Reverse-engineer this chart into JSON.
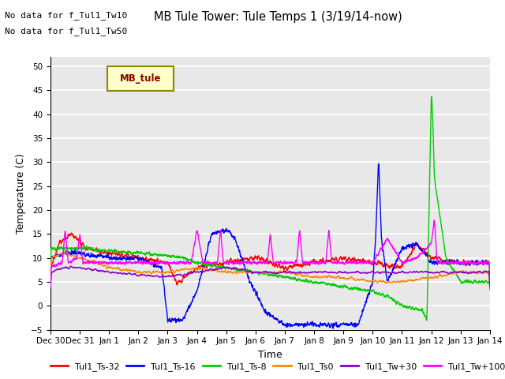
{
  "title": "MB Tule Tower: Tule Temps 1 (3/19/14-now)",
  "xlabel": "Time",
  "ylabel": "Temperature (C)",
  "ylim": [
    -5,
    52
  ],
  "yticks": [
    -5,
    0,
    5,
    10,
    15,
    20,
    25,
    30,
    35,
    40,
    45,
    50
  ],
  "xlim": [
    0,
    15
  ],
  "xtick_labels": [
    "Dec 30",
    "Dec 31",
    "Jan 1",
    "Jan 2",
    "Jan 3",
    "Jan 4",
    "Jan 5",
    "Jan 6",
    "Jan 7",
    "Jan 8",
    "Jan 9",
    "Jan 10",
    "Jan 11",
    "Jan 12",
    "Jan 13",
    "Jan 14"
  ],
  "xtick_positions": [
    0,
    1,
    2,
    3,
    4,
    5,
    6,
    7,
    8,
    9,
    10,
    11,
    12,
    13,
    14,
    15
  ],
  "bg_color": "#e8e8e8",
  "fig_bg_color": "#ffffff",
  "grid_color": "#ffffff",
  "series": {
    "Tul1_Ts-32": {
      "color": "#ff0000",
      "lw": 1.0
    },
    "Tul1_Ts-16": {
      "color": "#0000ff",
      "lw": 1.0
    },
    "Tul1_Ts-8": {
      "color": "#00cc00",
      "lw": 1.0
    },
    "Tul1_Ts0": {
      "color": "#ff8800",
      "lw": 1.0
    },
    "Tul1_Tw+30": {
      "color": "#8800cc",
      "lw": 1.0
    },
    "Tul1_Tw+100": {
      "color": "#ff00ff",
      "lw": 1.0
    }
  },
  "no_data_text": [
    "No data for f_Tul1_Tw10",
    "No data for f_Tul1_Tw50"
  ],
  "legend_label": "MB_tule",
  "legend_bg": "#ffffcc",
  "legend_border": "#888800"
}
